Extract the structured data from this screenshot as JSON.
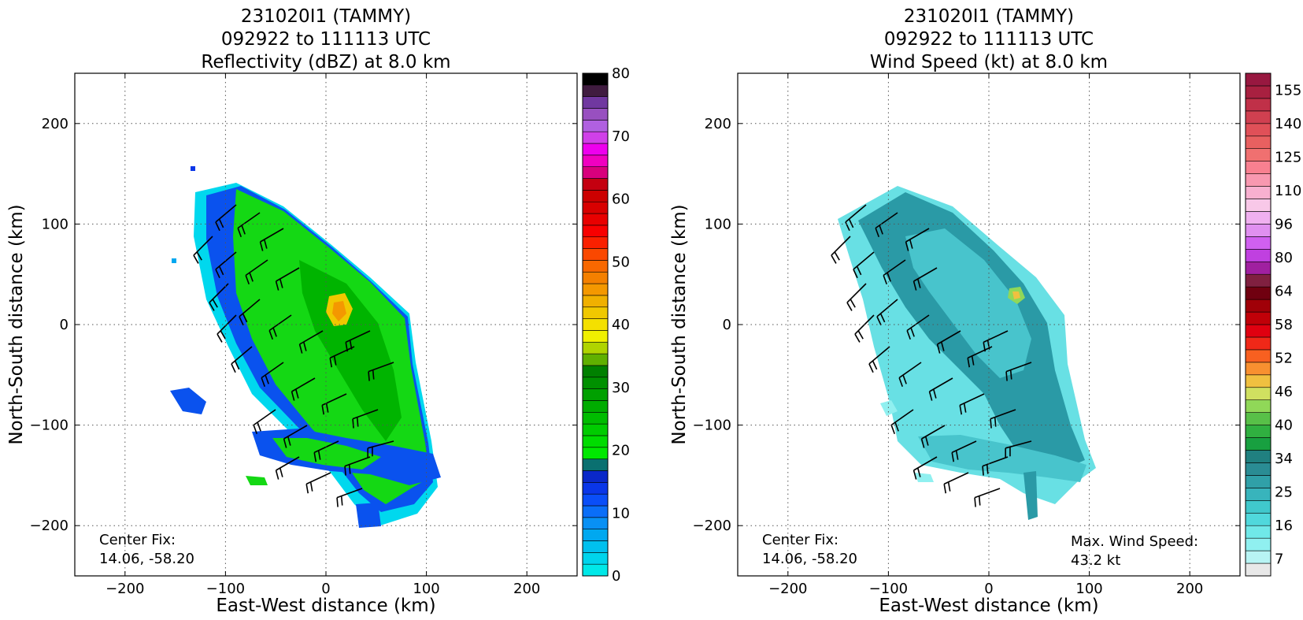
{
  "chart_data": [
    {
      "type": "heatmap",
      "title_lines": [
        "231020I1 (TAMMY)",
        "092922 to 111113 UTC",
        "Reflectivity (dBZ) at 8.0 km"
      ],
      "xlabel": "East-West distance (km)",
      "ylabel": "North-South distance (km)",
      "xlim": [
        -250,
        250
      ],
      "ylim": [
        -250,
        250
      ],
      "xticks": [
        -200,
        -100,
        0,
        100,
        200
      ],
      "yticks": [
        -200,
        -100,
        0,
        100,
        200
      ],
      "grid": true,
      "annotations": [
        {
          "id": "center-fix",
          "lines": [
            "Center Fix:",
            "14.06, -58.20"
          ],
          "placement": "bottom-left"
        }
      ],
      "colorbar": {
        "ticks": [
          0,
          10,
          20,
          30,
          40,
          50,
          60,
          70,
          80
        ],
        "min": 0,
        "max": 80,
        "colors": [
          "#00e8e8",
          "#00d4ec",
          "#00c0ee",
          "#00a8f0",
          "#0890f4",
          "#0a6ef8",
          "#0a4ef8",
          "#0a36e8",
          "#0a28c8",
          "#0a7070",
          "#00e800",
          "#00dc00",
          "#00cc00",
          "#00bc00",
          "#00ac00",
          "#00a000",
          "#009000",
          "#008000",
          "#60b000",
          "#b0d400",
          "#f0f000",
          "#f4e000",
          "#f0c800",
          "#f0b000",
          "#f49800",
          "#f48000",
          "#f86800",
          "#fa4800",
          "#fa2000",
          "#f80000",
          "#e80000",
          "#d80000",
          "#cc0000",
          "#c40010",
          "#d8007c",
          "#f000c0",
          "#ee00ee",
          "#d040e8",
          "#b060e0",
          "#9850c0",
          "#7038a0",
          "#401c40",
          "#000000"
        ]
      }
    },
    {
      "type": "heatmap",
      "title_lines": [
        "231020I1 (TAMMY)",
        "092922 to 111113 UTC",
        "Wind Speed (kt) at 8.0 km"
      ],
      "xlabel": "East-West distance (km)",
      "ylabel": "North-South distance (km)",
      "xlim": [
        -250,
        250
      ],
      "ylim": [
        -250,
        250
      ],
      "xticks": [
        -200,
        -100,
        0,
        100,
        200
      ],
      "yticks": [
        -200,
        -100,
        0,
        100,
        200
      ],
      "grid": true,
      "annotations": [
        {
          "id": "center-fix",
          "lines": [
            "Center Fix:",
            "14.06, -58.20"
          ],
          "placement": "bottom-left"
        },
        {
          "id": "max-wind",
          "lines": [
            "Max. Wind Speed:",
            "43.2 kt"
          ],
          "placement": "bottom-right"
        }
      ],
      "colorbar": {
        "ticks": [
          7,
          16,
          25,
          34,
          40,
          46,
          52,
          58,
          64,
          80,
          96,
          110,
          125,
          140,
          155
        ],
        "colors": [
          "#e8e8e8",
          "#b8f4f4",
          "#90f0f0",
          "#70e8e8",
          "#50d8dc",
          "#40c8cc",
          "#38b4bc",
          "#30a0a8",
          "#2a8c94",
          "#208080",
          "#18a040",
          "#30b040",
          "#58c048",
          "#90d858",
          "#d0e060",
          "#f0c040",
          "#f89030",
          "#f86020",
          "#f02818",
          "#e00010",
          "#c00008",
          "#a00008",
          "#700010",
          "#802040",
          "#a020a0",
          "#c040e0",
          "#d060f0",
          "#e090f0",
          "#f0b0f0",
          "#f8c8e8",
          "#f8b0d0",
          "#f898b0",
          "#f88090",
          "#f07070",
          "#e86060",
          "#e05058",
          "#d04050",
          "#c03048",
          "#a82040",
          "#981840"
        ]
      }
    }
  ]
}
